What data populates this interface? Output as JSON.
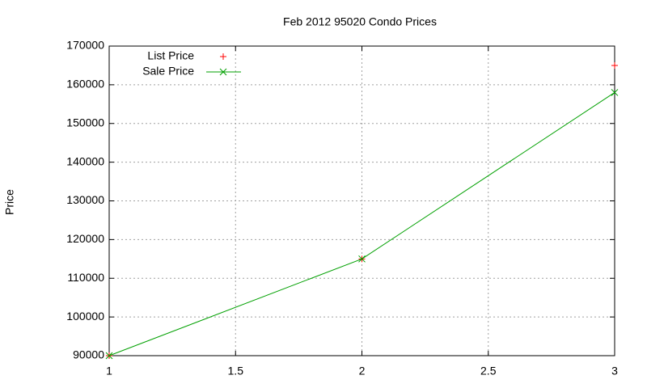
{
  "chart_data": {
    "type": "line",
    "title": "Feb 2012 95020 Condo Prices",
    "y_label": "Price",
    "x": [
      1,
      2,
      3
    ],
    "series": [
      {
        "name": "List Price",
        "color": "#ff0000",
        "style": "points",
        "values": [
          90000,
          115000,
          165000
        ]
      },
      {
        "name": "Sale Price",
        "color": "#00a000",
        "style": "linespoints",
        "values": [
          90000,
          115000,
          158000
        ]
      }
    ],
    "xlim": [
      1,
      3
    ],
    "xticks": [
      1,
      1.5,
      2,
      2.5,
      3
    ],
    "ylim": [
      90000,
      170000
    ],
    "yticks": [
      90000,
      100000,
      110000,
      120000,
      130000,
      140000,
      150000,
      160000,
      170000
    ],
    "grid": true,
    "legend": "top-left"
  }
}
